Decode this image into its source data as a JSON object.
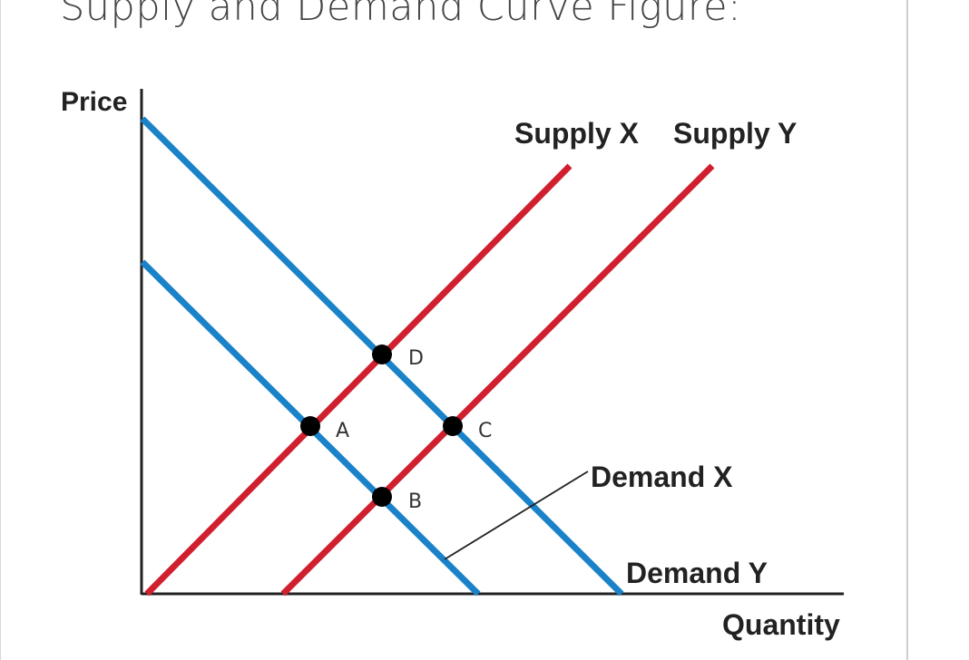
{
  "title": "Supply and Demand Curve Figure:",
  "axes": {
    "y_label": "Price",
    "x_label": "Quantity"
  },
  "curves": {
    "supply_x": "Supply X",
    "supply_y": "Supply Y",
    "demand_x": "Demand X",
    "demand_y": "Demand Y"
  },
  "points": {
    "a": "A",
    "b": "B",
    "c": "C",
    "d": "D"
  },
  "colors": {
    "supply": "#d0202f",
    "demand": "#1a82c8",
    "axis": "#222222"
  }
}
